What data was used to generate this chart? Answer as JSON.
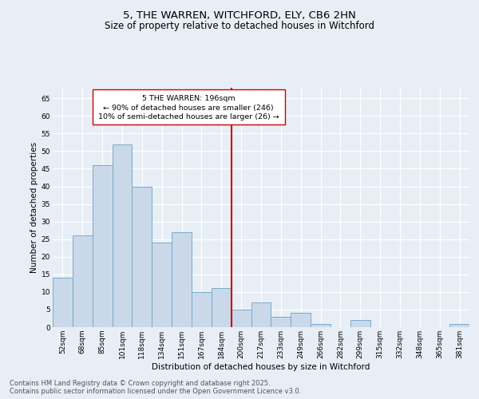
{
  "title_line1": "5, THE WARREN, WITCHFORD, ELY, CB6 2HN",
  "title_line2": "Size of property relative to detached houses in Witchford",
  "xlabel": "Distribution of detached houses by size in Witchford",
  "ylabel": "Number of detached properties",
  "categories": [
    "52sqm",
    "68sqm",
    "85sqm",
    "101sqm",
    "118sqm",
    "134sqm",
    "151sqm",
    "167sqm",
    "184sqm",
    "200sqm",
    "217sqm",
    "233sqm",
    "249sqm",
    "266sqm",
    "282sqm",
    "299sqm",
    "315sqm",
    "332sqm",
    "348sqm",
    "365sqm",
    "381sqm"
  ],
  "values": [
    14,
    26,
    46,
    52,
    40,
    24,
    27,
    10,
    11,
    5,
    7,
    3,
    4,
    1,
    0,
    2,
    0,
    0,
    0,
    0,
    1
  ],
  "bar_color": "#c9d9ea",
  "bar_edge_color": "#7aaac8",
  "bar_edge_width": 0.7,
  "vline_x": 8.5,
  "vline_color": "#cc0000",
  "annotation_line1": "5 THE WARREN: 196sqm",
  "annotation_line2": "← 90% of detached houses are smaller (246)",
  "annotation_line3": "10% of semi-detached houses are larger (26) →",
  "annotation_box_color": "#cc0000",
  "annotation_fill": "#ffffff",
  "ylim": [
    0,
    68
  ],
  "yticks": [
    0,
    5,
    10,
    15,
    20,
    25,
    30,
    35,
    40,
    45,
    50,
    55,
    60,
    65
  ],
  "background_color": "#e8eef5",
  "grid_color": "#ffffff",
  "footer_line1": "Contains HM Land Registry data © Crown copyright and database right 2025.",
  "footer_line2": "Contains public sector information licensed under the Open Government Licence v3.0.",
  "title_fontsize": 9.5,
  "subtitle_fontsize": 8.5,
  "axis_label_fontsize": 7.5,
  "tick_fontsize": 6.5,
  "annotation_fontsize": 6.8,
  "footer_fontsize": 6.0
}
